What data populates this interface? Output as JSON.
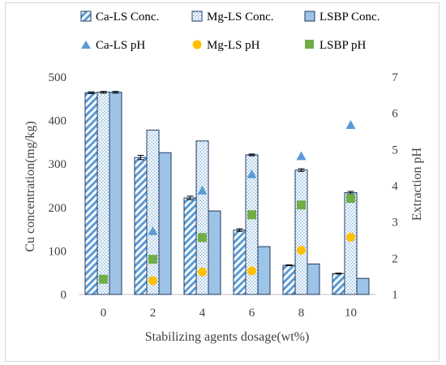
{
  "chart_data": {
    "type": "bar",
    "categories": [
      "0",
      "2",
      "4",
      "6",
      "8",
      "10"
    ],
    "xlabel": "Stabilizing agents dosage(wt%)",
    "ylabel": "Cu concentration(mg/kg)",
    "y2label": "Extraction pH",
    "ylim": [
      0,
      500
    ],
    "yticks": [
      "0",
      "100",
      "200",
      "300",
      "400",
      "500"
    ],
    "y2lim": [
      1,
      7
    ],
    "y2ticks": [
      "1",
      "2",
      "3",
      "4",
      "5",
      "6",
      "7"
    ],
    "grid": false,
    "legend_position": "top",
    "series": [
      {
        "name": "Ca-LS Conc.",
        "kind": "bar",
        "pattern": "diagonal-stripes",
        "color": "#5b9bd5",
        "values": [
          464,
          315,
          222,
          148,
          67,
          48
        ],
        "error": [
          2,
          5,
          4,
          3,
          1,
          1
        ]
      },
      {
        "name": "Mg-LS Conc.",
        "kind": "bar",
        "pattern": "dotted",
        "color": "#5b9bd5",
        "values": [
          465,
          378,
          353,
          321,
          286,
          234
        ],
        "error": [
          2,
          0,
          0,
          2,
          3,
          3
        ]
      },
      {
        "name": "LSBP Conc.",
        "kind": "bar",
        "pattern": "solid-light",
        "color": "#9dc3e6",
        "values": [
          465,
          326,
          192,
          110,
          70,
          37
        ],
        "error": [
          2,
          0,
          0,
          0,
          0,
          0
        ]
      },
      {
        "name": "Ca-LS pH",
        "kind": "scatter",
        "marker": "triangle",
        "color": "#5b9bd5",
        "axis": "right",
        "values": [
          null,
          2.75,
          3.87,
          4.32,
          4.82,
          5.68
        ]
      },
      {
        "name": "Mg-LS pH",
        "kind": "scatter",
        "marker": "circle",
        "color": "#ffc000",
        "axis": "right",
        "values": [
          null,
          1.38,
          1.62,
          1.65,
          2.22,
          2.58
        ]
      },
      {
        "name": "LSBP pH",
        "kind": "scatter",
        "marker": "square",
        "color": "#70ad47",
        "axis": "right",
        "values": [
          1.42,
          1.97,
          2.57,
          3.2,
          3.47,
          3.65
        ]
      }
    ]
  }
}
